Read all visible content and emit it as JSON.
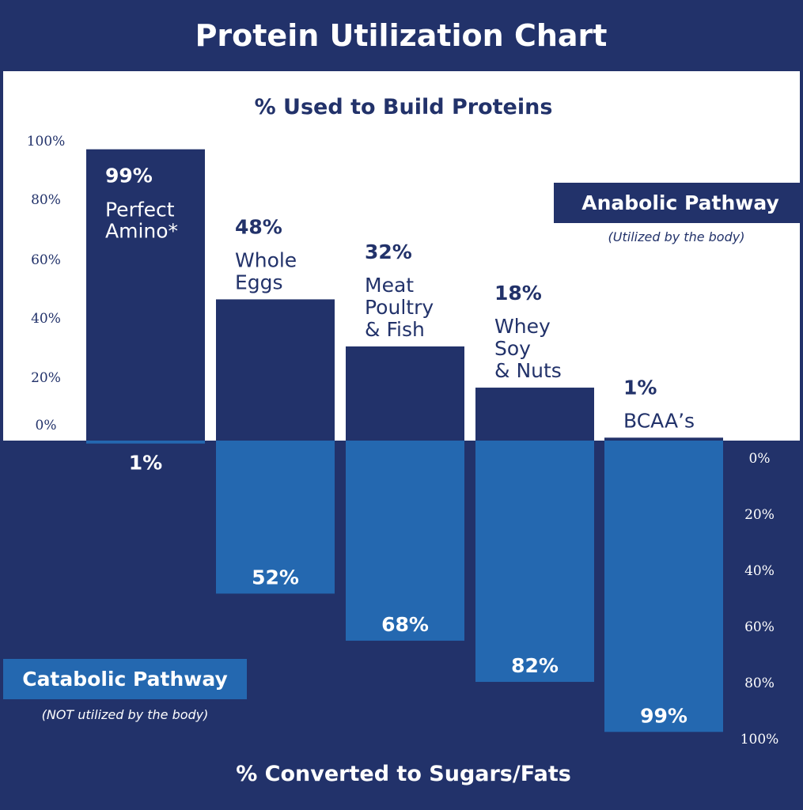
{
  "chart_data": {
    "type": "bar",
    "title": "Protein Utilization Chart",
    "top_axis_title": "% Used to Build Proteins",
    "bottom_axis_title": "% Converted to Sugars/Fats",
    "categories": [
      [
        "Perfect",
        "Amino*"
      ],
      [
        "Whole",
        "Eggs"
      ],
      [
        "Meat",
        "Poultry",
        "& Fish"
      ],
      [
        "Whey",
        "Soy",
        "& Nuts"
      ],
      [
        "BCAA’s"
      ]
    ],
    "series": [
      {
        "name": "Anabolic Pathway",
        "note": "(Utilized by the body)",
        "values": [
          99,
          48,
          32,
          18,
          1
        ],
        "color": "#22326a"
      },
      {
        "name": "Catabolic Pathway",
        "note": "(NOT utilized by the body)",
        "values": [
          1,
          52,
          68,
          82,
          99
        ],
        "color": "#2468b0"
      }
    ],
    "top_ticks": [
      "100%",
      "80%",
      "60%",
      "40%",
      "20%",
      "0%"
    ],
    "bottom_ticks": [
      "0%",
      "20%",
      "40%",
      "60%",
      "80%",
      "100%"
    ],
    "ylim": [
      0,
      100
    ],
    "colors": {
      "navy": "#22326a",
      "blue": "#2468b0",
      "white": "#ffffff"
    }
  }
}
